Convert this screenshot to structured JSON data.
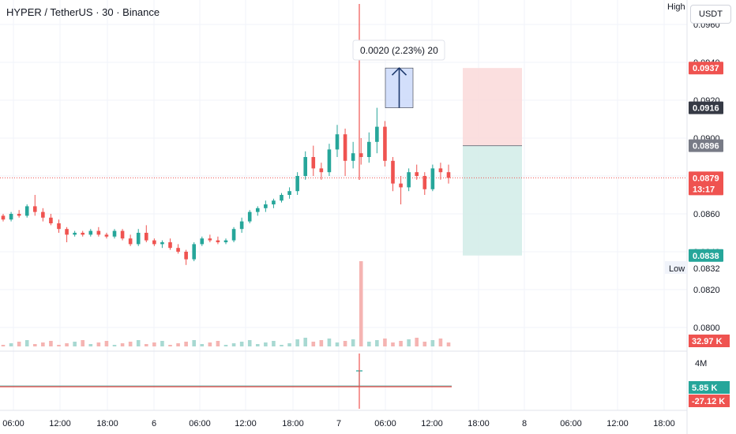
{
  "header": {
    "symbol_title": "HYPER / TetherUS · 30 · Binance",
    "currency": "USDT"
  },
  "measure_tooltip": "0.0020 (2.23%) 20",
  "markers": {
    "high_label": "High",
    "low_label": "Low",
    "low_value": "0.0832"
  },
  "colors": {
    "up": "#26a69a",
    "down": "#ef5350",
    "profit_zone": "#d4ede9",
    "loss_zone": "#fbdcdc",
    "measure_fill": "#cfdcfb",
    "measure_line": "#2962ff"
  },
  "chart_data": {
    "type": "candlestick",
    "price_axis": {
      "ticks": [
        "0.0800",
        "0.0820",
        "0.0840",
        "0.0860",
        "0.0880",
        "0.0900",
        "0.0920",
        "0.0940",
        "0.0960"
      ],
      "range": [
        0.0788,
        0.0964
      ]
    },
    "time_axis": {
      "ticks": [
        "06:00",
        "12:00",
        "18:00",
        "6",
        "06:00",
        "12:00",
        "18:00",
        "7",
        "06:00",
        "12:00",
        "18:00",
        "8",
        "06:00",
        "12:00",
        "18:00"
      ]
    },
    "price_badges": [
      {
        "text": "0.0937",
        "kind": "stop"
      },
      {
        "text": "0.0916",
        "kind": "high"
      },
      {
        "text": "0.0896",
        "kind": "entry"
      },
      {
        "text": "0.0879",
        "kind": "last"
      },
      {
        "text": "13:17",
        "kind": "countdown"
      },
      {
        "text": "0.0838",
        "kind": "target"
      }
    ],
    "volume": {
      "badge": "32.97 K",
      "spike_at": "7 03:30"
    },
    "oscillator": {
      "scale_label": "4M",
      "badges": [
        "5.85 K",
        "-27.12 K"
      ]
    },
    "last_price": 0.0879,
    "position_tool": {
      "entry": 0.0896,
      "stop": 0.0937,
      "target": 0.0838
    },
    "measure": {
      "from": 0.0916,
      "to": 0.0937,
      "change": "0.0020 (2.23%)",
      "bars": 20
    },
    "candles_note": "approximate 30-minute candles, read from the chart",
    "candles": [
      [
        0.0859,
        0.086,
        0.0856,
        0.0857
      ],
      [
        0.0857,
        0.0861,
        0.0856,
        0.086
      ],
      [
        0.086,
        0.0862,
        0.0858,
        0.0859
      ],
      [
        0.0859,
        0.0865,
        0.0858,
        0.0864
      ],
      [
        0.0864,
        0.087,
        0.0859,
        0.0861
      ],
      [
        0.0861,
        0.0863,
        0.0856,
        0.0858
      ],
      [
        0.0858,
        0.086,
        0.0854,
        0.0855
      ],
      [
        0.0855,
        0.0857,
        0.085,
        0.0852
      ],
      [
        0.0852,
        0.0853,
        0.0845,
        0.0849
      ],
      [
        0.0849,
        0.0851,
        0.0848,
        0.085
      ],
      [
        0.085,
        0.0851,
        0.0848,
        0.0849
      ],
      [
        0.0849,
        0.0852,
        0.0848,
        0.0851
      ],
      [
        0.0851,
        0.0853,
        0.0848,
        0.0849
      ],
      [
        0.0849,
        0.085,
        0.0847,
        0.0848
      ],
      [
        0.0848,
        0.0852,
        0.0847,
        0.0851
      ],
      [
        0.0851,
        0.0852,
        0.0846,
        0.0847
      ],
      [
        0.0847,
        0.0849,
        0.0843,
        0.0844
      ],
      [
        0.0844,
        0.0852,
        0.0843,
        0.085
      ],
      [
        0.085,
        0.0854,
        0.0845,
        0.0846
      ],
      [
        0.0846,
        0.0847,
        0.0843,
        0.0844
      ],
      [
        0.0844,
        0.0846,
        0.0842,
        0.0845
      ],
      [
        0.0845,
        0.0847,
        0.0841,
        0.0842
      ],
      [
        0.0842,
        0.0844,
        0.0839,
        0.084
      ],
      [
        0.084,
        0.0841,
        0.0833,
        0.0836
      ],
      [
        0.0836,
        0.0845,
        0.0835,
        0.0844
      ],
      [
        0.0844,
        0.0848,
        0.0843,
        0.0847
      ],
      [
        0.0847,
        0.0849,
        0.0845,
        0.0846
      ],
      [
        0.0846,
        0.0848,
        0.0844,
        0.0845
      ],
      [
        0.0845,
        0.0847,
        0.0844,
        0.0846
      ],
      [
        0.0846,
        0.0853,
        0.0845,
        0.0852
      ],
      [
        0.0852,
        0.0858,
        0.085,
        0.0856
      ],
      [
        0.0856,
        0.0862,
        0.0855,
        0.0861
      ],
      [
        0.0861,
        0.0864,
        0.0859,
        0.0863
      ],
      [
        0.0863,
        0.0867,
        0.0861,
        0.0865
      ],
      [
        0.0865,
        0.0868,
        0.0863,
        0.0867
      ],
      [
        0.0867,
        0.0871,
        0.0866,
        0.087
      ],
      [
        0.087,
        0.0874,
        0.0868,
        0.0872
      ],
      [
        0.0872,
        0.0882,
        0.087,
        0.088
      ],
      [
        0.088,
        0.0893,
        0.0878,
        0.089
      ],
      [
        0.089,
        0.0896,
        0.088,
        0.0884
      ],
      [
        0.0884,
        0.0887,
        0.0878,
        0.0882
      ],
      [
        0.0882,
        0.0897,
        0.088,
        0.0894
      ],
      [
        0.0894,
        0.0907,
        0.089,
        0.0902
      ],
      [
        0.0902,
        0.0905,
        0.088,
        0.0888
      ],
      [
        0.0888,
        0.0898,
        0.0884,
        0.0892
      ],
      [
        0.0892,
        0.09,
        0.0886,
        0.089
      ],
      [
        0.089,
        0.0903,
        0.0887,
        0.0898
      ],
      [
        0.0898,
        0.0916,
        0.0892,
        0.0906
      ],
      [
        0.0906,
        0.0909,
        0.0885,
        0.0888
      ],
      [
        0.0888,
        0.089,
        0.0872,
        0.0876
      ],
      [
        0.0876,
        0.088,
        0.0865,
        0.0874
      ],
      [
        0.0874,
        0.0884,
        0.0872,
        0.0882
      ],
      [
        0.0882,
        0.0886,
        0.0878,
        0.088
      ],
      [
        0.088,
        0.0882,
        0.087,
        0.0873
      ],
      [
        0.0873,
        0.0886,
        0.0872,
        0.0884
      ],
      [
        0.0884,
        0.0887,
        0.0878,
        0.0882
      ],
      [
        0.0882,
        0.0886,
        0.0876,
        0.0879
      ]
    ]
  }
}
